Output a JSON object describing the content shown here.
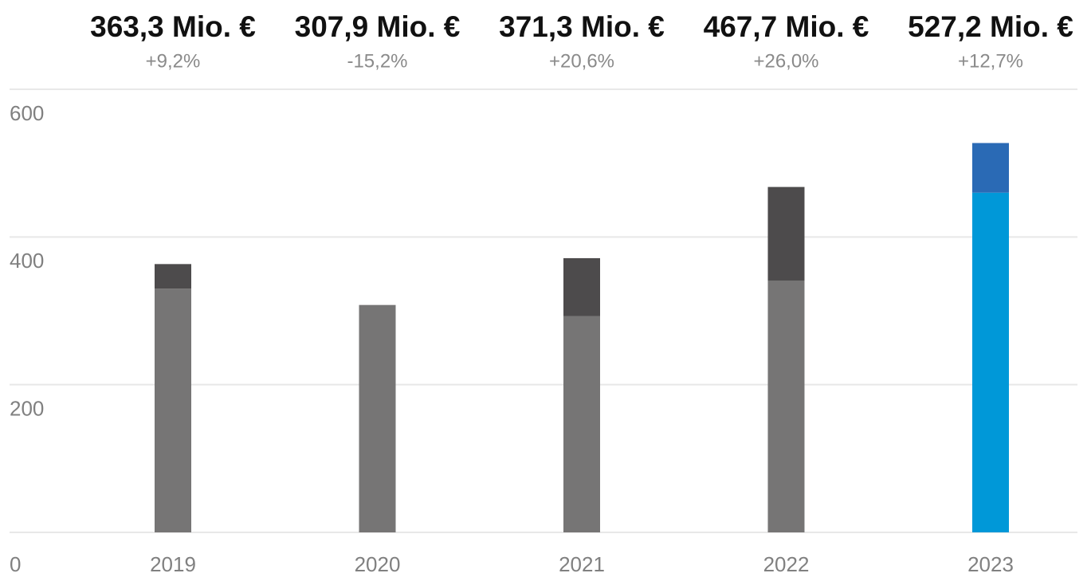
{
  "chart_data": {
    "type": "stacked-bar",
    "categories": [
      "2019",
      "2020",
      "2021",
      "2022",
      "2023"
    ],
    "totals": {
      "values": [
        363.3,
        307.9,
        371.3,
        467.7,
        527.2
      ],
      "value_labels": [
        "363,3 Mio. €",
        "307,9 Mio. €",
        "371,3 Mio. €",
        "467,7 Mio. €",
        "527,2 Mio. €"
      ]
    },
    "changes": {
      "values": [
        9.2,
        -15.2,
        20.6,
        26.0,
        12.7
      ],
      "value_labels": [
        "+9,2%",
        "-15,2%",
        "+20,6%",
        "+26,0%",
        "+12,7%"
      ]
    },
    "series": [
      {
        "colors": [
          "#767575",
          "#767575",
          "#767575",
          "#767575",
          "#0098d8"
        ],
        "values": [
          330,
          307.9,
          293,
          341,
          460
        ]
      },
      {
        "colors": [
          "#4d4b4c",
          "#4d4b4c",
          "#4d4b4c",
          "#4d4b4c",
          "#2a6ab5"
        ],
        "values": [
          33.3,
          null,
          78.3,
          126.7,
          67.2
        ]
      }
    ],
    "ylim": [
      0,
      600
    ],
    "yticks": [
      0,
      200,
      400,
      600
    ],
    "grid": true
  }
}
